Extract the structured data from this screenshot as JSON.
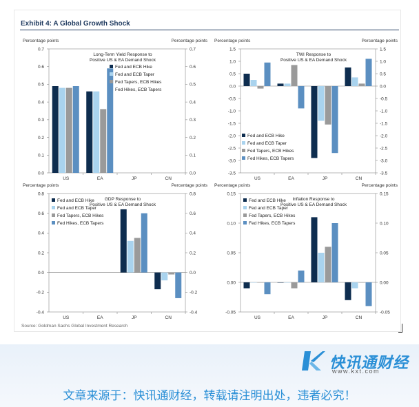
{
  "exhibit_title": "Exhibit 4: A Global Growth Shock",
  "source_text": "Source: Goldman Sachs Global Investment Research",
  "footer": {
    "logo_name": "快讯通财经",
    "logo_url": "www.kxt.com",
    "notice": "文章来源于：快讯通财经，转载请注明出处，违者必究！"
  },
  "colors": {
    "series": [
      "#0e2d4f",
      "#a9d3ee",
      "#9a9a9a",
      "#5b8fc1"
    ]
  },
  "chart_data": [
    {
      "type": "bar",
      "title": "Long-Term Yield Response to\nPositive US & EA Demand Shock",
      "ylabel_left": "Percentage points",
      "ylabel_right": "Percentage points",
      "categories": [
        "US",
        "EA",
        "JP",
        "CN"
      ],
      "ylim": [
        0,
        0.7
      ],
      "yticks": [
        0.0,
        0.1,
        0.2,
        0.3,
        0.4,
        0.5,
        0.6,
        0.7
      ],
      "decimals": 1,
      "legend_position": "top-center",
      "series": [
        {
          "name": "Fed and ECB Hike",
          "values": [
            0.49,
            0.46,
            null,
            null
          ]
        },
        {
          "name": "Fed and ECB Taper",
          "values": [
            0.48,
            0.46,
            null,
            null
          ]
        },
        {
          "name": "Fed Tapers, ECB Hikes",
          "values": [
            0.48,
            0.36,
            null,
            null
          ]
        },
        {
          "name": "Fed Hikes, ECB Tapers",
          "values": [
            0.49,
            0.59,
            null,
            null
          ]
        }
      ]
    },
    {
      "type": "bar",
      "title": "TWI Response to\nPositive US & EA Demand Shock",
      "ylabel_left": "Percentage points",
      "ylabel_right": "Percentage points",
      "categories": [
        "US",
        "EA",
        "JP",
        "CN"
      ],
      "ylim": [
        -3.5,
        1.5
      ],
      "yticks": [
        -3.5,
        -3.0,
        -2.5,
        -2.0,
        -1.5,
        -1.0,
        -0.5,
        0.0,
        0.5,
        1.0,
        1.5
      ],
      "decimals": 1,
      "legend_position": "bottom-left",
      "series": [
        {
          "name": "Fed and ECB Hike",
          "values": [
            0.5,
            0.1,
            -2.9,
            0.75
          ]
        },
        {
          "name": "Fed and ECB Taper",
          "values": [
            0.25,
            0.1,
            -1.4,
            0.35
          ]
        },
        {
          "name": "Fed Tapers, ECB Hikes",
          "values": [
            -0.1,
            0.85,
            -1.55,
            0.1
          ]
        },
        {
          "name": "Fed Hikes, ECB Tapers",
          "values": [
            0.95,
            -0.9,
            -2.7,
            1.1
          ]
        }
      ]
    },
    {
      "type": "bar",
      "title": "GDP Response to\nPositive US & EA Demand Shock",
      "ylabel_left": "Percentage points",
      "ylabel_right": "Percentage points",
      "categories": [
        "US",
        "EA",
        "JP",
        "CN"
      ],
      "ylim": [
        -0.4,
        0.8
      ],
      "yticks": [
        -0.4,
        -0.2,
        0.0,
        0.2,
        0.4,
        0.6,
        0.8
      ],
      "decimals": 1,
      "legend_position": "top-left",
      "series": [
        {
          "name": "Fed and ECB Hike",
          "values": [
            null,
            null,
            0.64,
            -0.17
          ]
        },
        {
          "name": "Fed and ECB Taper",
          "values": [
            null,
            null,
            0.32,
            -0.08
          ]
        },
        {
          "name": "Fed Tapers, ECB Hikes",
          "values": [
            null,
            null,
            0.35,
            -0.02
          ]
        },
        {
          "name": "Fed Hikes, ECB Tapers",
          "values": [
            null,
            null,
            0.6,
            -0.26
          ]
        }
      ]
    },
    {
      "type": "bar",
      "title": "Inflation Response to\nPositive US & EA Demand Shock",
      "ylabel_left": "Percentage points",
      "ylabel_right": "Percentage points",
      "categories": [
        "US",
        "EA",
        "JP",
        "CN"
      ],
      "ylim": [
        -0.05,
        0.15
      ],
      "yticks": [
        -0.05,
        0.0,
        0.05,
        0.1,
        0.15
      ],
      "decimals": 2,
      "legend_position": "top-left",
      "series": [
        {
          "name": "Fed and ECB Hike",
          "values": [
            -0.01,
            0.0,
            0.11,
            -0.03
          ]
        },
        {
          "name": "Fed and ECB Taper",
          "values": [
            0.0,
            0.0,
            0.05,
            -0.01
          ]
        },
        {
          "name": "Fed Tapers, ECB Hikes",
          "values": [
            0.0,
            -0.01,
            0.06,
            0.0
          ]
        },
        {
          "name": "Fed Hikes, ECB Tapers",
          "values": [
            -0.02,
            0.02,
            0.1,
            -0.04
          ]
        }
      ]
    }
  ]
}
